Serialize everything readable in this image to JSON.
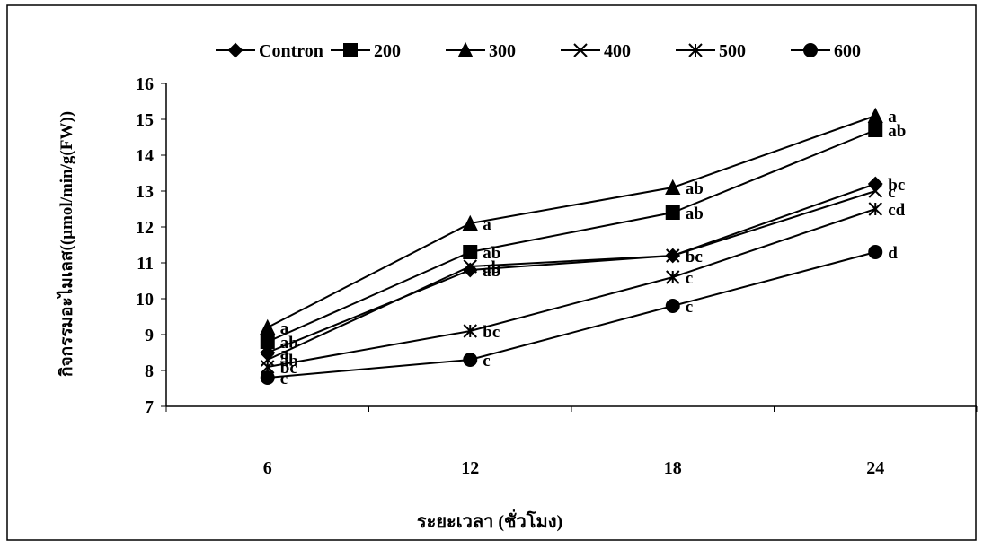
{
  "chart_data": {
    "type": "line",
    "x_label": "ระยะเวลา (ชั่วโมง)",
    "y_label": "กิจกรรมอะไมเลส((µmol/min/g(FW))",
    "categories": [
      "6",
      "12",
      "18",
      "24"
    ],
    "ylim": [
      7,
      16
    ],
    "yticks": [
      7,
      8,
      9,
      10,
      11,
      12,
      13,
      14,
      15,
      16
    ],
    "series": [
      {
        "name": "Contron",
        "color": "#000000",
        "marker": "diamond",
        "values": [
          8.5,
          10.8,
          11.2,
          13.2
        ],
        "letters": [
          "a",
          "ab",
          "bc",
          "bc"
        ]
      },
      {
        "name": "200",
        "color": "#000000",
        "marker": "square",
        "values": [
          8.8,
          11.3,
          12.4,
          14.7
        ],
        "letters": [
          "ab",
          "ab",
          "ab",
          "ab"
        ]
      },
      {
        "name": "300",
        "color": "#000000",
        "marker": "triangle",
        "values": [
          9.2,
          12.1,
          13.1,
          15.1
        ],
        "letters": [
          "a",
          "a",
          "ab",
          "a"
        ]
      },
      {
        "name": "400",
        "color": "#000000",
        "marker": "x",
        "values": [
          8.3,
          10.9,
          11.2,
          13.0
        ],
        "letters": [
          "ab",
          "ab",
          "bc",
          "c"
        ]
      },
      {
        "name": "500",
        "color": "#000000",
        "marker": "star",
        "values": [
          8.1,
          9.1,
          10.6,
          12.5
        ],
        "letters": [
          "bc",
          "bc",
          "c",
          "cd"
        ]
      },
      {
        "name": "600",
        "color": "#000000",
        "marker": "circle",
        "values": [
          7.8,
          8.3,
          9.8,
          11.3
        ],
        "letters": [
          "c",
          "c",
          "c",
          "d"
        ]
      }
    ]
  }
}
